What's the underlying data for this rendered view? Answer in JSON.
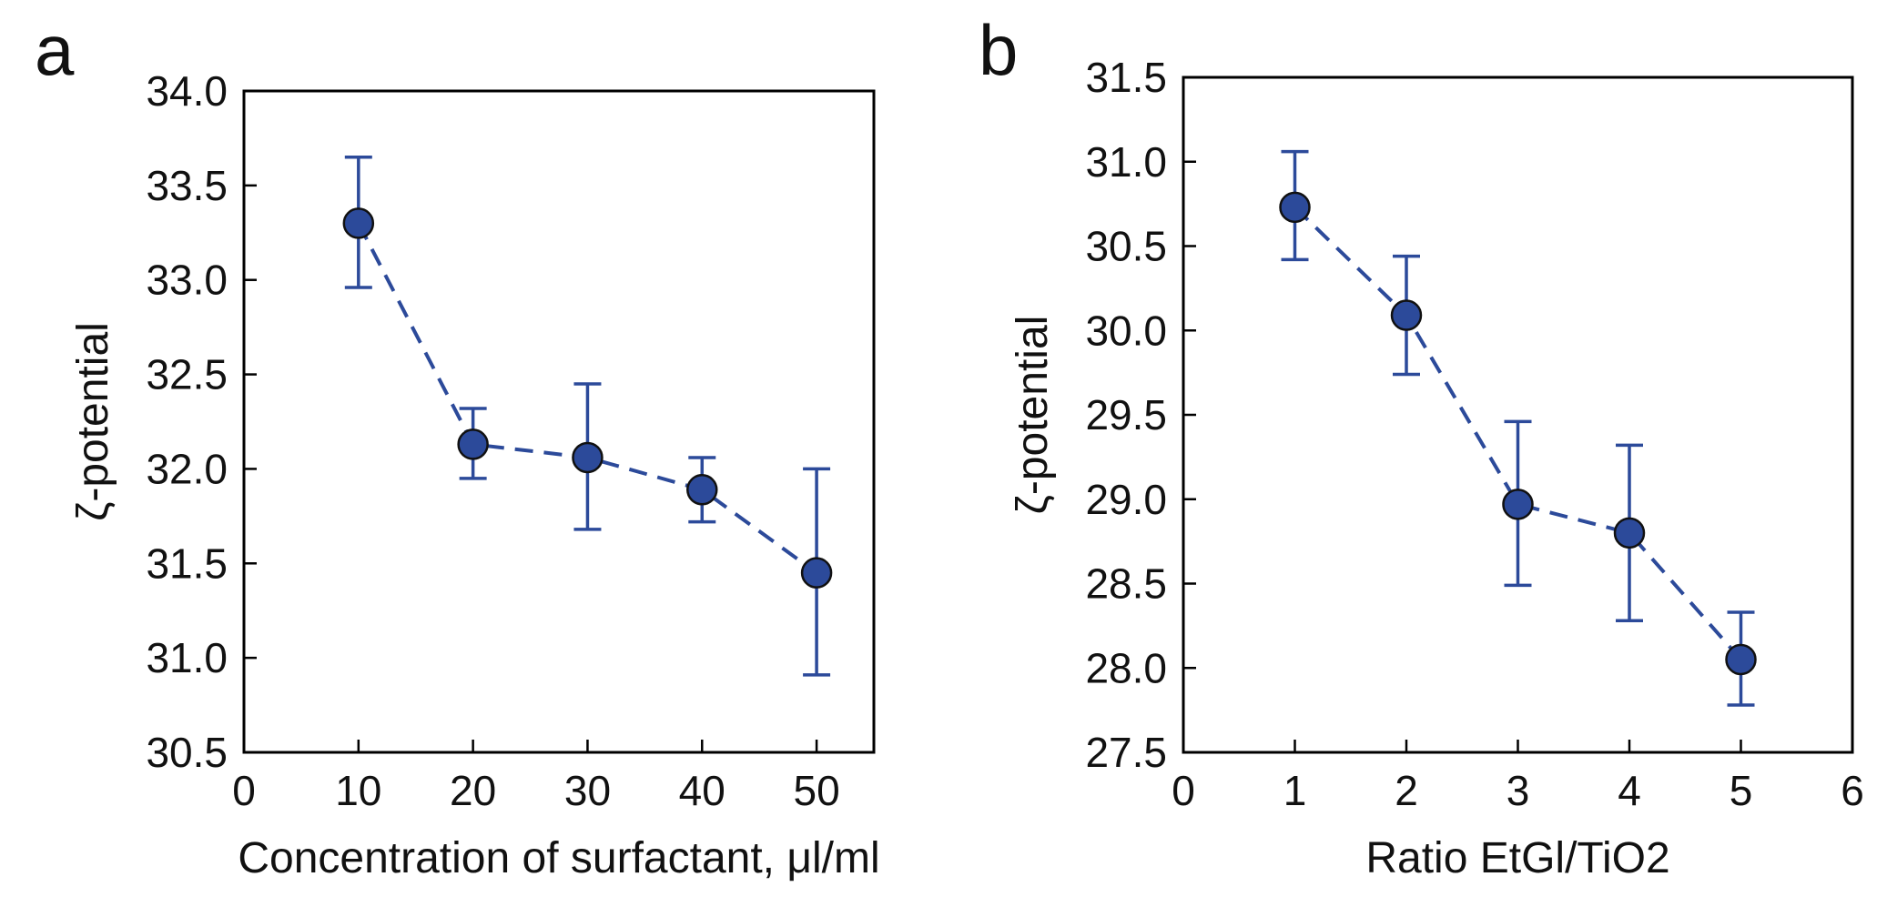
{
  "figure_colors": {
    "series": "#2c4a9a",
    "marker_edge": "#111111",
    "axes": "#000000"
  },
  "chart_data": [
    {
      "type": "scatter",
      "panel_label": "a",
      "title": "",
      "xlabel": "Concentration of surfactant, μl/ml",
      "ylabel": "ζ-potential",
      "xlim": [
        0,
        55
      ],
      "ylim": [
        30.5,
        34.0
      ],
      "xticks": [
        0,
        10,
        20,
        30,
        40,
        50
      ],
      "yticks": [
        30.5,
        31.0,
        31.5,
        32.0,
        32.5,
        33.0,
        33.5,
        34.0
      ],
      "xtick_labels": [
        "0",
        "10",
        "20",
        "30",
        "40",
        "50"
      ],
      "ytick_labels": [
        "30.5",
        "31.0",
        "31.5",
        "32.0",
        "32.5",
        "33.0",
        "33.5",
        "34.0"
      ],
      "grid": false,
      "line_style": "dashed",
      "series": [
        {
          "x": [
            10,
            20,
            30,
            40,
            50
          ],
          "y": [
            33.3,
            32.13,
            32.06,
            31.89,
            31.45
          ],
          "err_low": [
            32.96,
            31.95,
            31.68,
            31.72,
            30.91
          ],
          "err_high": [
            33.65,
            32.32,
            32.45,
            32.06,
            32.0
          ]
        }
      ]
    },
    {
      "type": "scatter",
      "panel_label": "b",
      "title": "",
      "xlabel": "Ratio EtGl/TiO2",
      "ylabel": "ζ-potential",
      "xlim": [
        0,
        6
      ],
      "ylim": [
        27.5,
        31.5
      ],
      "xticks": [
        0,
        1,
        2,
        3,
        4,
        5,
        6
      ],
      "yticks": [
        27.5,
        28.0,
        28.5,
        29.0,
        29.5,
        30.0,
        30.5,
        31.0,
        31.5
      ],
      "xtick_labels": [
        "0",
        "1",
        "2",
        "3",
        "4",
        "5",
        "6"
      ],
      "ytick_labels": [
        "27.5",
        "28.0",
        "28.5",
        "29.0",
        "29.5",
        "30.0",
        "30.5",
        "31.0",
        "31.5"
      ],
      "grid": false,
      "line_style": "dashed",
      "series": [
        {
          "x": [
            1,
            2,
            3,
            4,
            5
          ],
          "y": [
            30.73,
            30.09,
            28.97,
            28.8,
            28.05
          ],
          "err_low": [
            30.42,
            29.74,
            28.49,
            28.28,
            27.78
          ],
          "err_high": [
            31.06,
            30.44,
            29.46,
            29.32,
            28.33
          ]
        }
      ]
    }
  ]
}
